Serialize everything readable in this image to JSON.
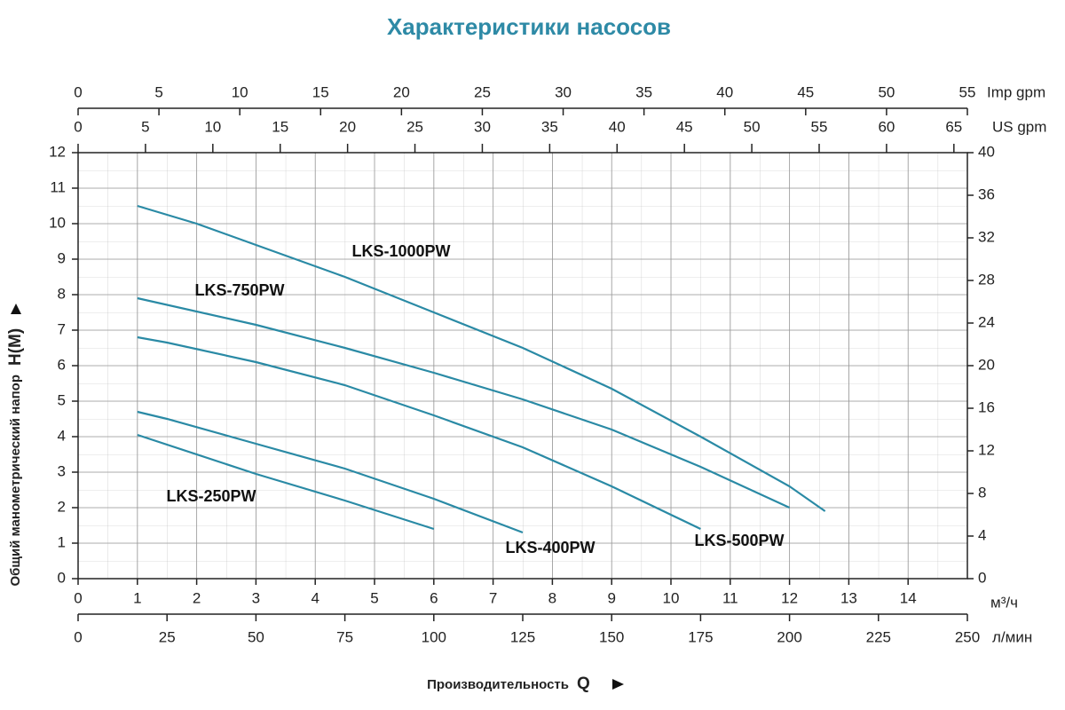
{
  "chart_data": {
    "type": "line",
    "title": "Характеристики насосов",
    "y_label": "Общий манометрический напор",
    "y_symbol": "H(M)",
    "x_label": "Производительность",
    "x_symbol": "Q",
    "x_unit": "м³/ч",
    "x2_unit": "л/мин",
    "x3_unit": "US gpm",
    "x4_unit": "Imp gpm",
    "xlim": [
      0,
      15
    ],
    "xticks": [
      0,
      1,
      2,
      3,
      4,
      5,
      6,
      7,
      8,
      9,
      10,
      11,
      12,
      13,
      14
    ],
    "x2lim": [
      0,
      250
    ],
    "x2ticks": [
      0,
      25,
      50,
      75,
      100,
      125,
      150,
      175,
      200,
      225,
      250
    ],
    "x3lim": [
      0,
      66
    ],
    "x3ticks": [
      0,
      5,
      10,
      15,
      20,
      25,
      30,
      35,
      40,
      45,
      50,
      55,
      60,
      65
    ],
    "x4lim": [
      0,
      55
    ],
    "x4ticks": [
      0,
      5,
      10,
      15,
      20,
      25,
      30,
      35,
      40,
      45,
      50,
      55
    ],
    "ylim": [
      0,
      12
    ],
    "yticks": [
      0,
      1,
      2,
      3,
      4,
      5,
      6,
      7,
      8,
      9,
      10,
      11,
      12
    ],
    "y2lim": [
      0,
      40
    ],
    "y2ticks": [
      0,
      4,
      8,
      12,
      16,
      20,
      24,
      28,
      32,
      36,
      40
    ],
    "grid": true,
    "series": [
      {
        "name": "LKS-1000PW",
        "color": "#2a8aa5",
        "x": [
          1,
          2,
          3,
          4.5,
          6,
          7.5,
          9,
          10.5,
          12,
          12.6
        ],
        "values": [
          10.5,
          10.0,
          9.4,
          8.5,
          7.5,
          6.5,
          5.35,
          4.0,
          2.6,
          1.9
        ]
      },
      {
        "name": "LKS-750PW",
        "color": "#2a8aa5",
        "x": [
          1,
          3,
          4.5,
          6,
          7.5,
          9,
          10.5,
          12
        ],
        "values": [
          7.9,
          7.15,
          6.5,
          5.8,
          5.05,
          4.2,
          3.15,
          2.0
        ]
      },
      {
        "name": "LKS-500PW",
        "color": "#2a8aa5",
        "x": [
          1,
          1.5,
          3,
          4.5,
          6,
          7.5,
          9,
          10.5
        ],
        "values": [
          6.8,
          6.65,
          6.1,
          5.45,
          4.6,
          3.7,
          2.6,
          1.4
        ]
      },
      {
        "name": "LKS-400PW",
        "color": "#2a8aa5",
        "x": [
          1,
          1.5,
          3,
          4.5,
          6,
          7.5
        ],
        "values": [
          4.7,
          4.5,
          3.8,
          3.1,
          2.25,
          1.3
        ]
      },
      {
        "name": "LKS-250PW",
        "color": "#2a8aa5",
        "x": [
          1,
          3,
          4.5,
          6
        ],
        "values": [
          4.05,
          2.95,
          2.2,
          1.4
        ]
      }
    ]
  }
}
